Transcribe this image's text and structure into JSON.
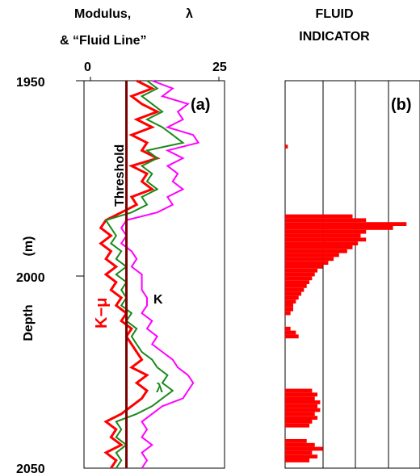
{
  "chart_data": [
    {
      "panel": "(a)",
      "type": "line",
      "title_lines": [
        "Modulus,",
        "λ",
        "& “Fluid Line”"
      ],
      "x_ticks": [
        "0",
        "25"
      ],
      "xlim": [
        0,
        25
      ],
      "ylim": [
        1950,
        2050
      ],
      "ylabel": "Depth",
      "yunit": "(m)",
      "y_ticks": [
        "1950",
        "2000",
        "2050"
      ],
      "annotations": {
        "threshold": "Threshold",
        "k_mu": "K−μ",
        "k": "K",
        "lambda": "λ"
      },
      "threshold_x": 7,
      "series": [
        {
          "name": "K−μ",
          "color": "#ff0000",
          "points": [
            [
              1950,
              9
            ],
            [
              1952,
              12
            ],
            [
              1954,
              8
            ],
            [
              1956,
              10
            ],
            [
              1958,
              13
            ],
            [
              1960,
              9
            ],
            [
              1962,
              12
            ],
            [
              1964,
              8
            ],
            [
              1966,
              11
            ],
            [
              1968,
              10
            ],
            [
              1970,
              13
            ],
            [
              1972,
              8
            ],
            [
              1974,
              11
            ],
            [
              1976,
              10
            ],
            [
              1978,
              12
            ],
            [
              1980,
              8
            ],
            [
              1982,
              9
            ],
            [
              1984,
              6
            ],
            [
              1986,
              3
            ],
            [
              1988,
              2
            ],
            [
              1990,
              4
            ],
            [
              1992,
              2
            ],
            [
              1994,
              4
            ],
            [
              1996,
              3
            ],
            [
              1998,
              5
            ],
            [
              2000,
              3
            ],
            [
              2002,
              5
            ],
            [
              2004,
              4
            ],
            [
              2006,
              6
            ],
            [
              2008,
              5
            ],
            [
              2010,
              7
            ],
            [
              2012,
              6
            ],
            [
              2014,
              8
            ],
            [
              2016,
              7
            ],
            [
              2018,
              8
            ],
            [
              2020,
              9
            ],
            [
              2022,
              10
            ],
            [
              2024,
              8
            ],
            [
              2026,
              11
            ],
            [
              2028,
              9
            ],
            [
              2030,
              11
            ],
            [
              2032,
              10
            ],
            [
              2034,
              8
            ],
            [
              2036,
              6
            ],
            [
              2038,
              3
            ],
            [
              2040,
              5
            ],
            [
              2042,
              4
            ],
            [
              2044,
              6
            ],
            [
              2046,
              3
            ],
            [
              2048,
              5
            ],
            [
              2050,
              4
            ]
          ]
        },
        {
          "name": "λ",
          "color": "#1a8a1a",
          "points": [
            [
              1950,
              11
            ],
            [
              1952,
              13
            ],
            [
              1954,
              10
            ],
            [
              1956,
              12
            ],
            [
              1958,
              14
            ],
            [
              1960,
              11
            ],
            [
              1962,
              14
            ],
            [
              1964,
              16
            ],
            [
              1966,
              18
            ],
            [
              1968,
              11
            ],
            [
              1970,
              13
            ],
            [
              1972,
              10
            ],
            [
              1974,
              12
            ],
            [
              1976,
              11
            ],
            [
              1978,
              13
            ],
            [
              1980,
              10
            ],
            [
              1982,
              11
            ],
            [
              1984,
              8
            ],
            [
              1986,
              3
            ],
            [
              1988,
              4
            ],
            [
              1990,
              5
            ],
            [
              1992,
              4
            ],
            [
              1994,
              6
            ],
            [
              1996,
              5
            ],
            [
              1998,
              7
            ],
            [
              2000,
              5
            ],
            [
              2002,
              7
            ],
            [
              2004,
              6
            ],
            [
              2006,
              7
            ],
            [
              2008,
              6
            ],
            [
              2010,
              8
            ],
            [
              2012,
              7
            ],
            [
              2014,
              9
            ],
            [
              2016,
              8
            ],
            [
              2018,
              9
            ],
            [
              2020,
              10
            ],
            [
              2022,
              12
            ],
            [
              2024,
              13
            ],
            [
              2026,
              15
            ],
            [
              2028,
              14
            ],
            [
              2030,
              16
            ],
            [
              2032,
              14
            ],
            [
              2034,
              12
            ],
            [
              2036,
              9
            ],
            [
              2038,
              5
            ],
            [
              2040,
              6
            ],
            [
              2042,
              5
            ],
            [
              2044,
              7
            ],
            [
              2046,
              5
            ],
            [
              2048,
              6
            ],
            [
              2050,
              5
            ]
          ]
        },
        {
          "name": "K",
          "color": "#ff00ff",
          "points": [
            [
              1950,
              12
            ],
            [
              1952,
              16
            ],
            [
              1954,
              14
            ],
            [
              1956,
              19
            ],
            [
              1958,
              17
            ],
            [
              1960,
              18
            ],
            [
              1962,
              15
            ],
            [
              1964,
              20
            ],
            [
              1966,
              21
            ],
            [
              1968,
              15
            ],
            [
              1970,
              18
            ],
            [
              1972,
              15
            ],
            [
              1974,
              17
            ],
            [
              1976,
              16
            ],
            [
              1978,
              18
            ],
            [
              1980,
              15
            ],
            [
              1982,
              16
            ],
            [
              1984,
              13
            ],
            [
              1986,
              7
            ],
            [
              1988,
              6
            ],
            [
              1990,
              7
            ],
            [
              1992,
              6
            ],
            [
              1994,
              8
            ],
            [
              1996,
              9
            ],
            [
              1998,
              8
            ],
            [
              2000,
              10
            ],
            [
              2002,
              10
            ],
            [
              2004,
              10
            ],
            [
              2006,
              11
            ],
            [
              2008,
              11
            ],
            [
              2010,
              10
            ],
            [
              2012,
              12
            ],
            [
              2014,
              11
            ],
            [
              2016,
              13
            ],
            [
              2018,
              12
            ],
            [
              2020,
              14
            ],
            [
              2022,
              16
            ],
            [
              2024,
              17
            ],
            [
              2026,
              19
            ],
            [
              2028,
              20
            ],
            [
              2030,
              19
            ],
            [
              2032,
              18
            ],
            [
              2034,
              14
            ],
            [
              2036,
              12
            ],
            [
              2038,
              10
            ],
            [
              2040,
              11
            ],
            [
              2042,
              10
            ],
            [
              2044,
              12
            ],
            [
              2046,
              10
            ],
            [
              2048,
              11
            ],
            [
              2050,
              10
            ]
          ]
        }
      ]
    },
    {
      "panel": "(b)",
      "type": "bar",
      "title_lines": [
        "FLUID",
        "INDICATOR"
      ],
      "ylim": [
        1950,
        2050
      ],
      "color": "#ff0000",
      "bars": [
        [
          1967,
          1
        ],
        [
          1985,
          25
        ],
        [
          1986,
          30
        ],
        [
          1987,
          45
        ],
        [
          1988,
          40
        ],
        [
          1989,
          30
        ],
        [
          1990,
          28
        ],
        [
          1991,
          30
        ],
        [
          1992,
          27
        ],
        [
          1993,
          25
        ],
        [
          1994,
          23
        ],
        [
          1995,
          20
        ],
        [
          1996,
          18
        ],
        [
          1997,
          16
        ],
        [
          1998,
          14
        ],
        [
          1999,
          12
        ],
        [
          2000,
          11
        ],
        [
          2001,
          10
        ],
        [
          2002,
          9
        ],
        [
          2003,
          8
        ],
        [
          2004,
          7
        ],
        [
          2005,
          6
        ],
        [
          2006,
          5
        ],
        [
          2007,
          4
        ],
        [
          2008,
          3
        ],
        [
          2009,
          3
        ],
        [
          2010,
          2
        ],
        [
          2014,
          2
        ],
        [
          2015,
          4
        ],
        [
          2016,
          5
        ],
        [
          2030,
          10
        ],
        [
          2031,
          12
        ],
        [
          2032,
          11
        ],
        [
          2033,
          13
        ],
        [
          2034,
          12
        ],
        [
          2035,
          13
        ],
        [
          2036,
          11
        ],
        [
          2037,
          12
        ],
        [
          2038,
          10
        ],
        [
          2039,
          9
        ],
        [
          2043,
          8
        ],
        [
          2044,
          11
        ],
        [
          2045,
          14
        ],
        [
          2046,
          10
        ],
        [
          2047,
          12
        ],
        [
          2048,
          9
        ]
      ],
      "xlim": [
        0,
        50
      ]
    }
  ]
}
